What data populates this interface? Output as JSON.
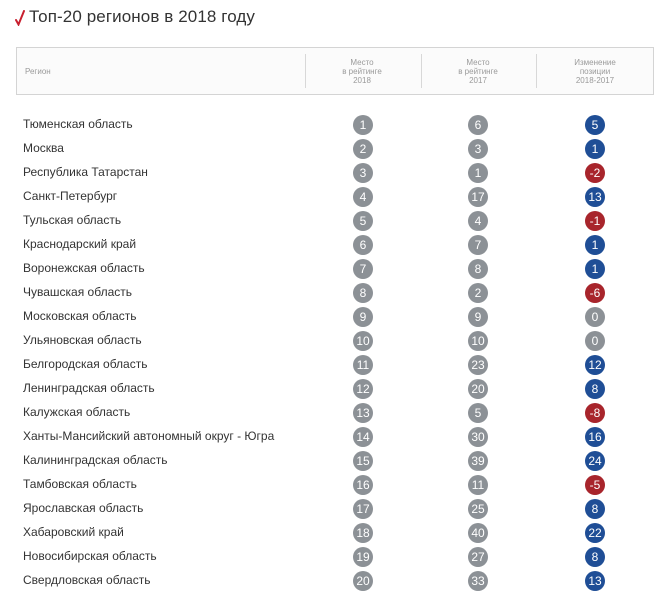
{
  "title": "Топ-20 регионов в 2018 году",
  "colors": {
    "accent": "#c8202f",
    "rank": "#8c9196",
    "up": "#1f4e96",
    "down": "#a8252c",
    "neutral": "#8c9196"
  },
  "header": {
    "region": "Регион",
    "rank2018": [
      "Место",
      "в рейтинге",
      "2018"
    ],
    "rank2017": [
      "Место",
      "в рейтинге",
      "2017"
    ],
    "change": [
      "Изменение",
      "позиции",
      "2018-2017"
    ]
  },
  "rows": [
    {
      "name": "Тюменская область",
      "rank2018": "1",
      "rank2017": "6",
      "change": "5"
    },
    {
      "name": "Москва",
      "rank2018": "2",
      "rank2017": "3",
      "change": "1"
    },
    {
      "name": "Республика Татарстан",
      "rank2018": "3",
      "rank2017": "1",
      "change": "-2"
    },
    {
      "name": "Санкт-Петербург",
      "rank2018": "4",
      "rank2017": "17",
      "change": "13"
    },
    {
      "name": "Тульская область",
      "rank2018": "5",
      "rank2017": "4",
      "change": "-1"
    },
    {
      "name": "Краснодарский край",
      "rank2018": "6",
      "rank2017": "7",
      "change": "1"
    },
    {
      "name": "Воронежская область",
      "rank2018": "7",
      "rank2017": "8",
      "change": "1"
    },
    {
      "name": "Чувашская область",
      "rank2018": "8",
      "rank2017": "2",
      "change": "-6"
    },
    {
      "name": "Московская область",
      "rank2018": "9",
      "rank2017": "9",
      "change": "0"
    },
    {
      "name": "Ульяновская область",
      "rank2018": "10",
      "rank2017": "10",
      "change": "0"
    },
    {
      "name": "Белгородская область",
      "rank2018": "11",
      "rank2017": "23",
      "change": "12"
    },
    {
      "name": "Ленинградская область",
      "rank2018": "12",
      "rank2017": "20",
      "change": "8"
    },
    {
      "name": "Калужская область",
      "rank2018": "13",
      "rank2017": "5",
      "change": "-8"
    },
    {
      "name": "Ханты-Мансийский автономный округ - Югра",
      "rank2018": "14",
      "rank2017": "30",
      "change": "16"
    },
    {
      "name": "Калининградская область",
      "rank2018": "15",
      "rank2017": "39",
      "change": "24"
    },
    {
      "name": "Тамбовская область",
      "rank2018": "16",
      "rank2017": "11",
      "change": "-5"
    },
    {
      "name": "Ярославская область",
      "rank2018": "17",
      "rank2017": "25",
      "change": "8"
    },
    {
      "name": "Хабаровский край",
      "rank2018": "18",
      "rank2017": "40",
      "change": "22"
    },
    {
      "name": "Новосибирская область",
      "rank2018": "19",
      "rank2017": "27",
      "change": "8"
    },
    {
      "name": "Свердловская область",
      "rank2018": "20",
      "rank2017": "33",
      "change": "13"
    }
  ]
}
